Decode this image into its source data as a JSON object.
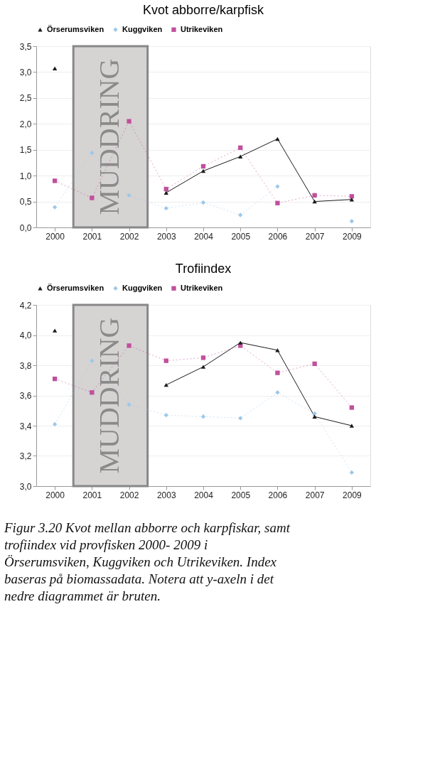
{
  "chart_data": [
    {
      "type": "line",
      "title": "Kvot abborre/karpfisk",
      "categories": [
        "2000",
        "2001",
        "2002",
        "2003",
        "2004",
        "2005",
        "2006",
        "2007",
        "2009"
      ],
      "series": [
        {
          "name": "Örserumsviken",
          "color": "#1a1a1a",
          "marker": "triangle",
          "line_style": "solid",
          "values": [
            3.07,
            null,
            null,
            0.67,
            1.09,
            1.37,
            1.71,
            0.5,
            0.54
          ]
        },
        {
          "name": "Kuggviken",
          "color": "#9cc8ea",
          "marker": "diamond",
          "line_style": "dotted",
          "values": [
            0.39,
            1.44,
            0.62,
            0.37,
            0.48,
            0.24,
            0.79,
            null,
            0.12
          ]
        },
        {
          "name": "Utrikeviken",
          "color": "#c0509c",
          "marker": "square",
          "line_style": "dotted",
          "values": [
            0.9,
            0.57,
            2.05,
            0.74,
            1.18,
            1.54,
            0.47,
            0.62,
            0.6
          ]
        }
      ],
      "ylim": [
        0,
        3.5
      ],
      "yticks": [
        {
          "value": 0,
          "label": "0,0"
        },
        {
          "value": 0.5,
          "label": "0,5"
        },
        {
          "value": 1,
          "label": "1,0"
        },
        {
          "value": 1.5,
          "label": "1,5"
        },
        {
          "value": 2,
          "label": "2,0"
        },
        {
          "value": 2.5,
          "label": "2,5"
        },
        {
          "value": 3,
          "label": "3,0"
        },
        {
          "value": 3.5,
          "label": "3,5"
        }
      ],
      "bands": [
        {
          "axis": "x",
          "from": "2001",
          "to": "2002",
          "label": "MUDDRING",
          "color": "#d6d3d3"
        }
      ],
      "grid": "y",
      "legend": "top"
    },
    {
      "type": "line",
      "title": "Trofiindex",
      "categories": [
        "2000",
        "2001",
        "2002",
        "2003",
        "2004",
        "2005",
        "2006",
        "2007",
        "2009"
      ],
      "series": [
        {
          "name": "Örserumsviken",
          "color": "#1a1a1a",
          "marker": "triangle",
          "line_style": "solid",
          "values": [
            4.03,
            null,
            null,
            3.67,
            3.79,
            3.95,
            3.9,
            3.46,
            3.4
          ]
        },
        {
          "name": "Kuggviken",
          "color": "#9cc8ea",
          "marker": "diamond",
          "line_style": "dotted",
          "values": [
            3.41,
            3.83,
            3.54,
            3.47,
            3.46,
            3.45,
            3.62,
            3.48,
            3.09
          ]
        },
        {
          "name": "Utrikeviken",
          "color": "#c0509c",
          "marker": "square",
          "line_style": "dotted",
          "values": [
            3.71,
            3.62,
            3.93,
            3.83,
            3.85,
            3.93,
            3.75,
            3.81,
            3.52
          ]
        }
      ],
      "ylim": [
        3.0,
        4.2
      ],
      "yticks": [
        {
          "value": 3.0,
          "label": "3,0"
        },
        {
          "value": 3.2,
          "label": "3,2"
        },
        {
          "value": 3.4,
          "label": "3,4"
        },
        {
          "value": 3.6,
          "label": "3,6"
        },
        {
          "value": 3.8,
          "label": "3,8"
        },
        {
          "value": 4.0,
          "label": "4,0"
        },
        {
          "value": 4.2,
          "label": "4,2"
        }
      ],
      "bands": [
        {
          "axis": "x",
          "from": "2001",
          "to": "2002",
          "label": "MUDDRING",
          "color": "#d6d3d3"
        }
      ],
      "grid": "y",
      "legend": "top",
      "annotations": [
        "Figur 3.20 Kvot mellan abborre och karpfiskar, samt trofiindex vid provfisken 2000- 2009 i Örserumsviken, Kuggviken och Utrikeviken. Index baseras på biomassadata. Notera att y-axeln i det nedre diagrammet är bruten."
      ]
    }
  ]
}
